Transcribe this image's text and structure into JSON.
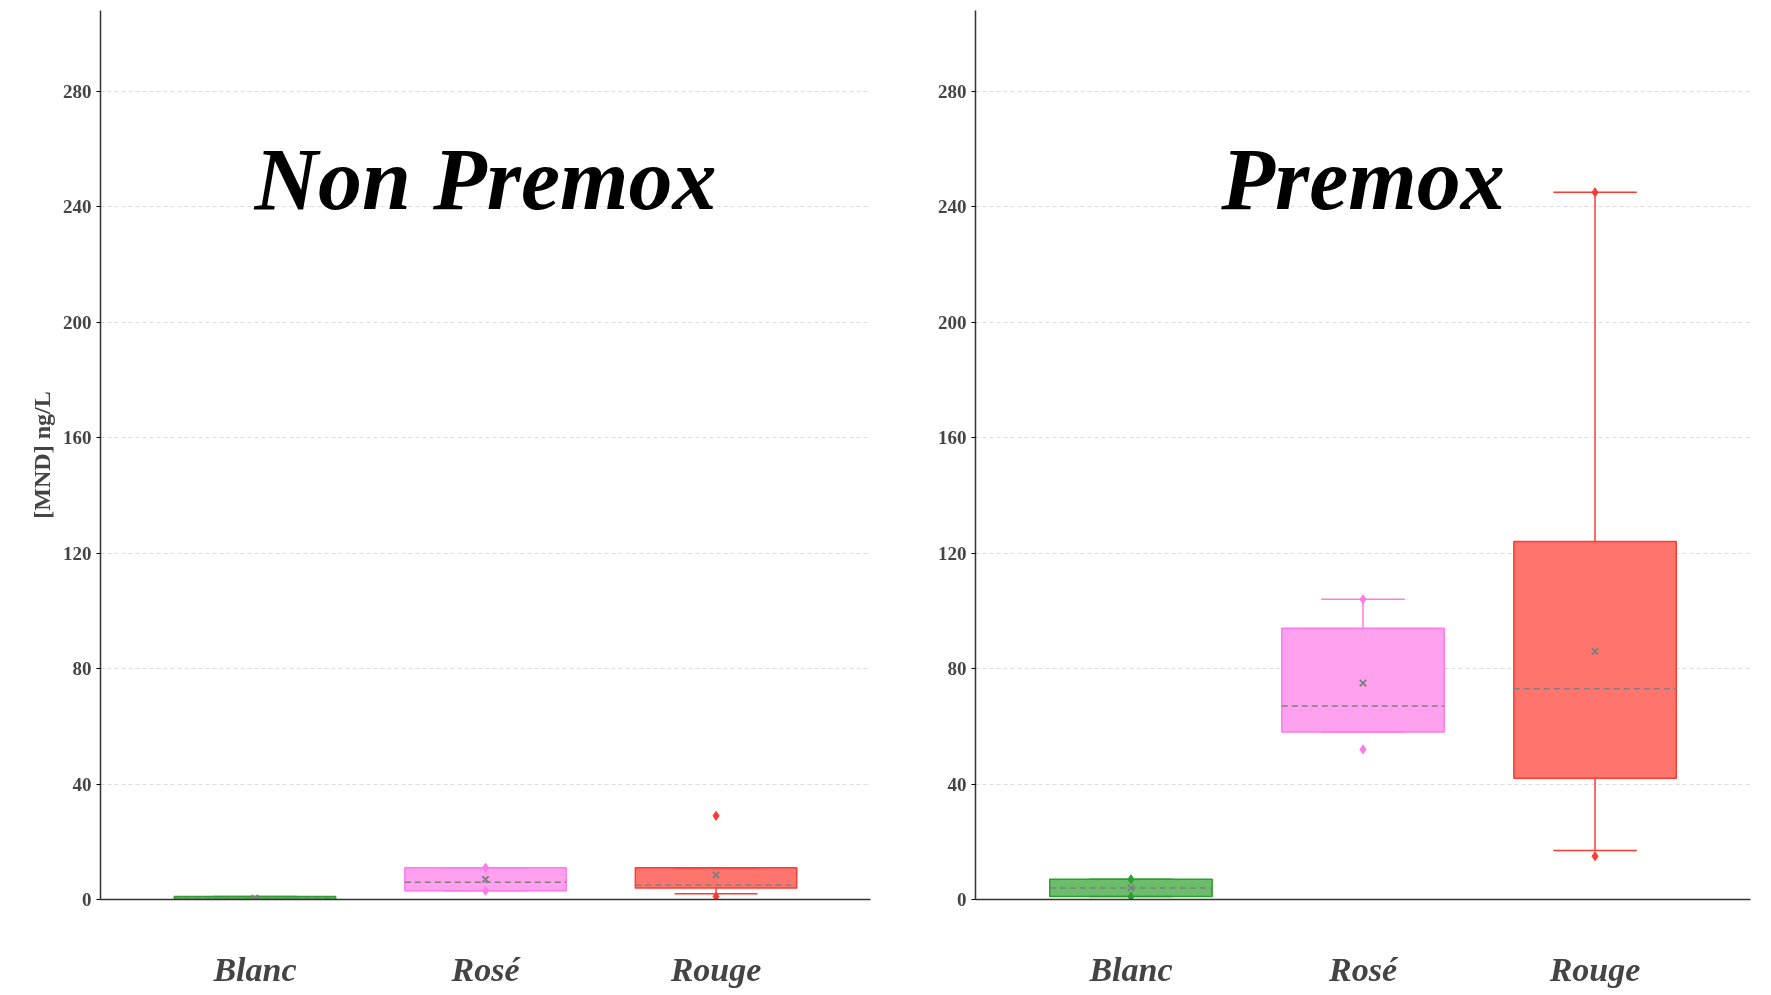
{
  "chart_data": [
    {
      "type": "box",
      "title": "Non Premox",
      "ylabel": "[MND] ng/L",
      "categories": [
        "Blanc",
        "Rosé",
        "Rouge"
      ],
      "colors": [
        "#2ca02c",
        "#ff7ae8",
        "#ff3b30"
      ],
      "ylim": [
        0,
        308
      ],
      "yticks": [
        0,
        40,
        80,
        120,
        160,
        200,
        240,
        280
      ],
      "grid": "y",
      "marker": "diamond",
      "boxes": [
        {
          "low": 0,
          "q1": 0,
          "median": 0.5,
          "q3": 1,
          "high": 1,
          "mean": 0.5
        },
        {
          "low": 3,
          "q1": 3,
          "median": 6,
          "q3": 11,
          "high": 11,
          "mean": 7,
          "outliers": [
            3,
            11
          ]
        },
        {
          "low": 2,
          "q1": 4,
          "median": 5,
          "q3": 11,
          "high": 11,
          "mean": 8.5,
          "outliers": [
            29,
            1
          ]
        }
      ]
    },
    {
      "type": "box",
      "title": "Premox",
      "categories": [
        "Blanc",
        "Rosé",
        "Rouge"
      ],
      "colors": [
        "#2ca02c",
        "#ff7ae8",
        "#ff3b30"
      ],
      "ylim": [
        0,
        308
      ],
      "yticks": [
        0,
        40,
        80,
        120,
        160,
        200,
        240,
        280
      ],
      "grid": "y",
      "marker": "diamond",
      "boxes": [
        {
          "low": 1,
          "q1": 1,
          "median": 4,
          "q3": 7,
          "high": 7,
          "mean": 4,
          "outliers": [
            1,
            7
          ]
        },
        {
          "low": 58,
          "q1": 58,
          "median": 67,
          "q3": 94,
          "high": 104,
          "mean": 75,
          "outliers": [
            52,
            104
          ]
        },
        {
          "low": 17,
          "q1": 42,
          "median": 73,
          "q3": 124,
          "high": 245,
          "mean": 86,
          "outliers": [
            15,
            245
          ]
        }
      ]
    }
  ]
}
